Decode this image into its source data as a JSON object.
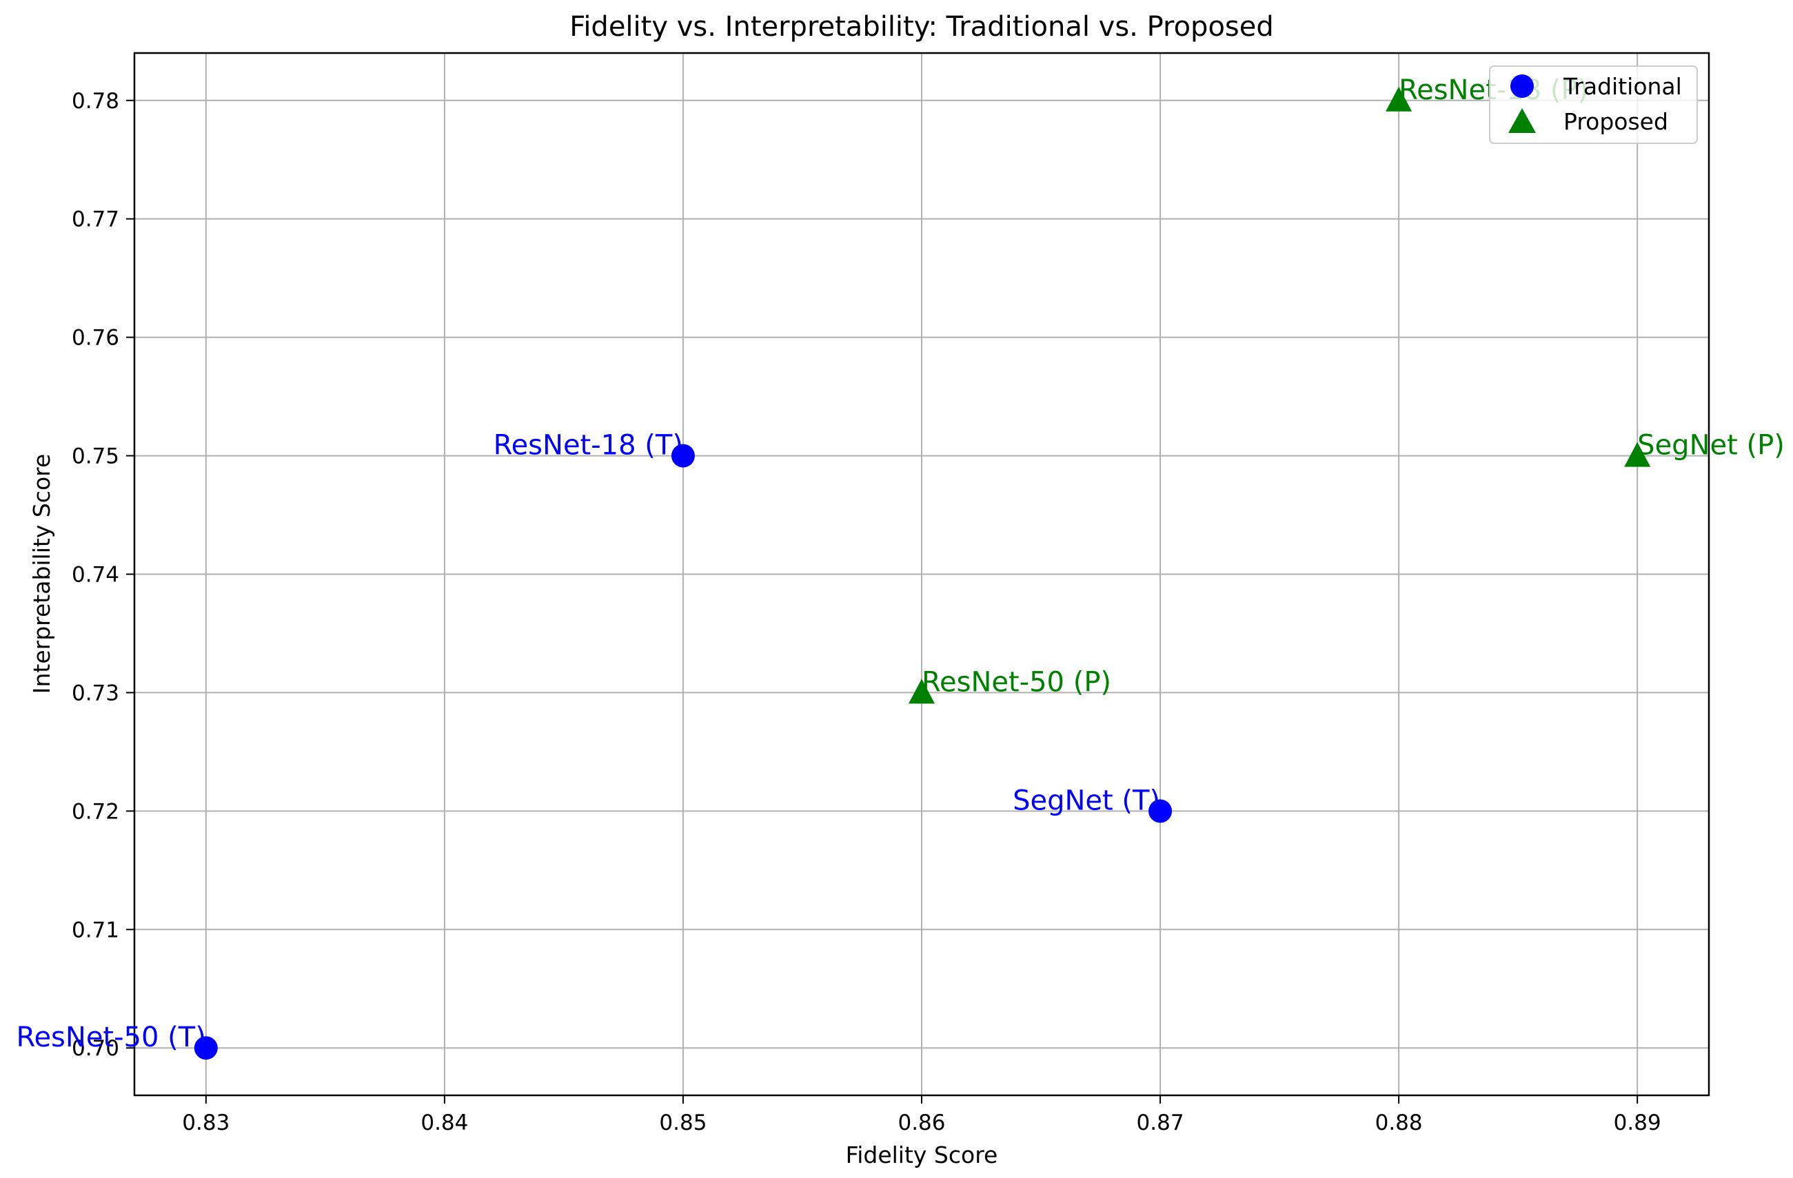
{
  "chart_data": {
    "type": "scatter",
    "title": "Fidelity vs. Interpretability: Traditional vs. Proposed",
    "xlabel": "Fidelity Score",
    "ylabel": "Interpretability Score",
    "xlim": [
      0.827,
      0.893
    ],
    "ylim": [
      0.696,
      0.784
    ],
    "xticks": [
      "0.83",
      "0.84",
      "0.85",
      "0.86",
      "0.87",
      "0.88",
      "0.89"
    ],
    "yticks": [
      "0.70",
      "0.71",
      "0.72",
      "0.73",
      "0.74",
      "0.75",
      "0.76",
      "0.77",
      "0.78"
    ],
    "grid": true,
    "legend_position": "top-right",
    "series": [
      {
        "name": "Traditional",
        "marker": "circle",
        "color": "#0000ff",
        "points": [
          {
            "x": 0.83,
            "y": 0.7,
            "label": "ResNet-50 (T)"
          },
          {
            "x": 0.85,
            "y": 0.75,
            "label": "ResNet-18 (T)"
          },
          {
            "x": 0.87,
            "y": 0.72,
            "label": "SegNet (T)"
          }
        ]
      },
      {
        "name": "Proposed",
        "marker": "triangle",
        "color": "#008000",
        "points": [
          {
            "x": 0.86,
            "y": 0.73,
            "label": "ResNet-50 (P)"
          },
          {
            "x": 0.88,
            "y": 0.78,
            "label": "ResNet-18 (P)"
          },
          {
            "x": 0.89,
            "y": 0.75,
            "label": "SegNet (P)"
          }
        ]
      }
    ]
  }
}
